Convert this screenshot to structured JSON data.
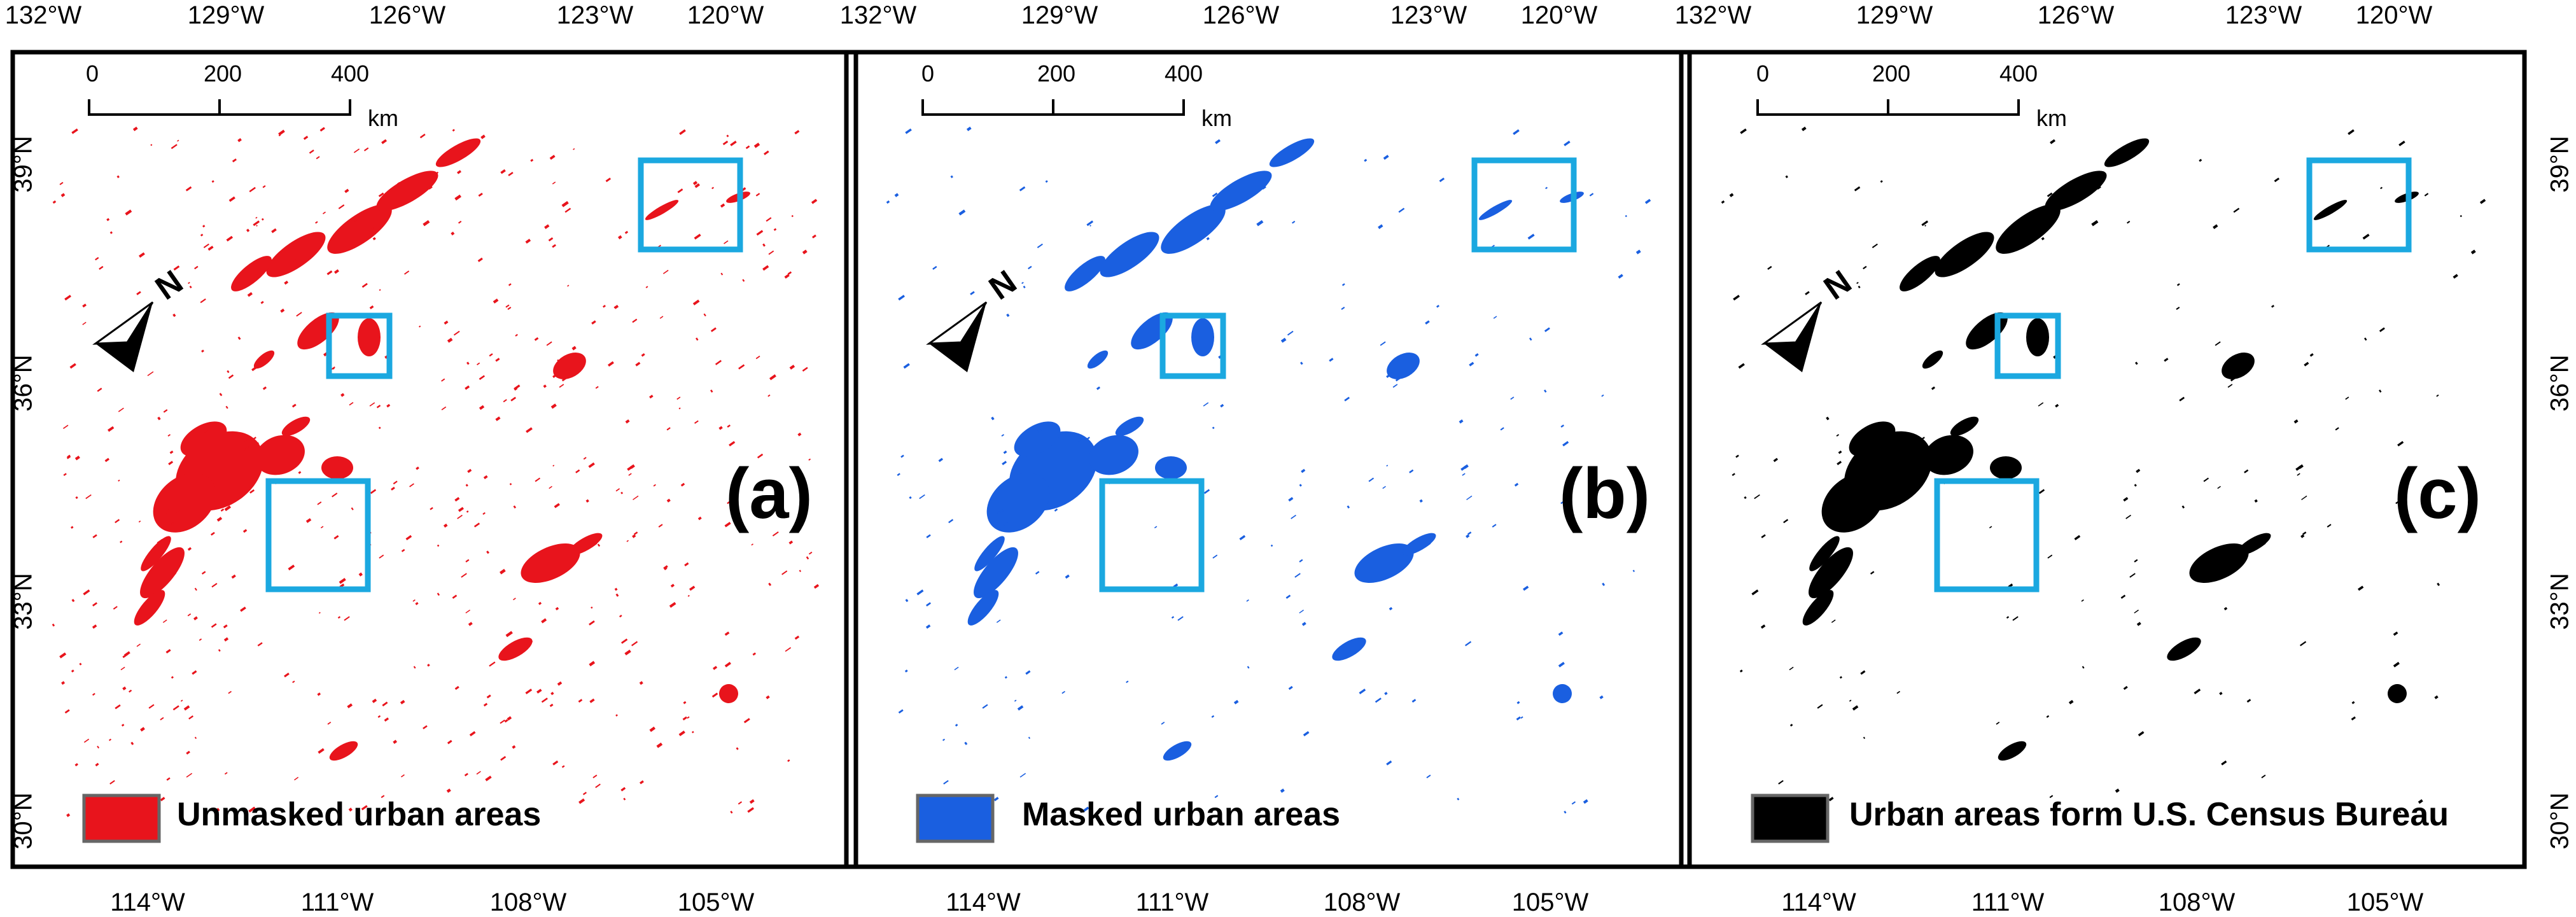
{
  "axes": {
    "top_ticks": [
      "132°W",
      "129°W",
      "126°W",
      "123°W",
      "120°W"
    ],
    "bottom_ticks": [
      "114°W",
      "111°W",
      "108°W",
      "105°W"
    ],
    "left_ticks": [
      "39°N",
      "36°N",
      "33°N",
      "30°N"
    ],
    "right_ticks": [
      "39°N",
      "36°N",
      "33°N",
      "30°N"
    ]
  },
  "scale_bar": {
    "labels": [
      "0",
      "200",
      "400"
    ],
    "unit": "km"
  },
  "north_arrow": {
    "label": "N"
  },
  "panels": [
    {
      "label": "(a)",
      "legend": "Unmasked urban areas",
      "fill": "#e8141c"
    },
    {
      "label": "(b)",
      "legend": "Masked urban areas",
      "fill": "#1a5fe0"
    },
    {
      "label": "(c)",
      "legend": "Urban areas form U.S. Census Bureau",
      "fill": "#000000"
    }
  ],
  "colors": {
    "highlight_box": "#1ba8e0",
    "frame": "#000000",
    "legend_border": "#666666"
  }
}
